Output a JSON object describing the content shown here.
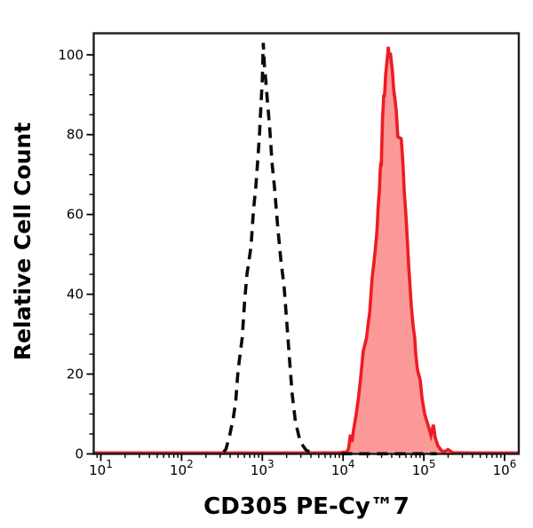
{
  "figure": {
    "background": "#ffffff",
    "frame_color": "#1c1c1c"
  },
  "chart_data": {
    "type": "area",
    "variant": "flow-cytometry-histogram-overlay",
    "title": "",
    "xlabel": "CD305 PE-Cy™7",
    "ylabel": "Relative Cell Count",
    "x_scale": "log10",
    "x_tick_exponents": [
      1,
      2,
      3,
      4,
      5,
      6
    ],
    "x_range_log10": [
      0.912,
      6.176
    ],
    "y_ticks_major": [
      0,
      20,
      40,
      60,
      80,
      100
    ],
    "y_tick_minor_step": 5,
    "y_range": [
      0,
      105.4
    ],
    "grid": false,
    "legend": null,
    "axis_color": "#1c1c1c",
    "tick_color": "#000000",
    "series": [
      {
        "name": "cd305-pe-cy7-stained",
        "line_style": "solid",
        "stroke": "#ed1c24",
        "stroke_width": 3.6,
        "dash": null,
        "fill": "#fb9998",
        "draw_above_axes": false,
        "paths": [
          [
            [
              0.912,
              0.25
            ],
            [
              3.6,
              0.25
            ],
            [
              3.95,
              0.3
            ],
            [
              4.05,
              0.5
            ],
            [
              4.07,
              1.5
            ],
            [
              4.09,
              4.8
            ],
            [
              4.11,
              3.0
            ],
            [
              4.13,
              6.0
            ],
            [
              4.16,
              9.5
            ],
            [
              4.19,
              14.0
            ],
            [
              4.22,
              19.5
            ],
            [
              4.25,
              25.8
            ],
            [
              4.29,
              29.0
            ],
            [
              4.31,
              32.5
            ],
            [
              4.33,
              35.5
            ],
            [
              4.345,
              40.0
            ],
            [
              4.36,
              44.0
            ],
            [
              4.38,
              47.5
            ],
            [
              4.4,
              51.5
            ],
            [
              4.42,
              56.0
            ],
            [
              4.435,
              62.0
            ],
            [
              4.45,
              66.0
            ],
            [
              4.46,
              71.0
            ],
            [
              4.468,
              73.0
            ],
            [
              4.473,
              72.0
            ],
            [
              4.482,
              79.0
            ],
            [
              4.49,
              84.5
            ],
            [
              4.497,
              87.0
            ],
            [
              4.503,
              90.0
            ],
            [
              4.51,
              89.5
            ],
            [
              4.517,
              91.0
            ],
            [
              4.527,
              95.0
            ],
            [
              4.537,
              97.0
            ],
            [
              4.55,
              99.5
            ],
            [
              4.56,
              102.0
            ],
            [
              4.57,
              99.5
            ],
            [
              4.585,
              100.5
            ],
            [
              4.6,
              98.0
            ],
            [
              4.613,
              95.5
            ],
            [
              4.626,
              91.5
            ],
            [
              4.645,
              88.5
            ],
            [
              4.658,
              86.0
            ],
            [
              4.668,
              83.0
            ],
            [
              4.678,
              79.5
            ],
            [
              4.72,
              79.0
            ],
            [
              4.735,
              75.0
            ],
            [
              4.748,
              70.0
            ],
            [
              4.758,
              65.5
            ],
            [
              4.775,
              61.0
            ],
            [
              4.788,
              56.5
            ],
            [
              4.8,
              52.0
            ],
            [
              4.813,
              47.0
            ],
            [
              4.83,
              42.0
            ],
            [
              4.845,
              37.0
            ],
            [
              4.868,
              32.0
            ],
            [
              4.888,
              29.0
            ],
            [
              4.9,
              25.0
            ],
            [
              4.922,
              21.0
            ],
            [
              4.955,
              18.5
            ],
            [
              4.978,
              14.0
            ],
            [
              5.01,
              10.0
            ],
            [
              5.055,
              7.0
            ],
            [
              5.088,
              4.7
            ],
            [
              5.118,
              7.3
            ],
            [
              5.142,
              4.0
            ],
            [
              5.175,
              2.0
            ],
            [
              5.22,
              0.8
            ],
            [
              5.25,
              0.5
            ],
            [
              5.3,
              1.1
            ],
            [
              5.36,
              0.3
            ],
            [
              5.6,
              0.25
            ],
            [
              6.176,
              0.25
            ]
          ]
        ]
      },
      {
        "name": "dashed-control",
        "line_style": "dashed",
        "stroke": "#0a0a0a",
        "stroke_width": 3.6,
        "dash": [
          12,
          8
        ],
        "fill": "none",
        "draw_above_axes": true,
        "paths": [
          [
            [
              2.52,
              0.5
            ],
            [
              2.55,
              1.2
            ],
            [
              2.6,
              5.0
            ],
            [
              2.64,
              9.0
            ],
            [
              2.67,
              13.0
            ],
            [
              2.7,
              21.0
            ],
            [
              2.75,
              29.0
            ],
            [
              2.78,
              38.0
            ],
            [
              2.81,
              45.0
            ],
            [
              2.86,
              52.0
            ],
            [
              2.89,
              61.0
            ],
            [
              2.92,
              67.0
            ],
            [
              2.945,
              74.0
            ],
            [
              2.965,
              80.0
            ],
            [
              2.985,
              88.0
            ],
            [
              3.0,
              94.0
            ],
            [
              3.012,
              103.0
            ],
            [
              3.025,
              97.5
            ],
            [
              3.045,
              93.0
            ],
            [
              3.06,
              89.0
            ],
            [
              3.09,
              82.0
            ],
            [
              3.12,
              73.0
            ],
            [
              3.15,
              67.0
            ],
            [
              3.19,
              57.0
            ],
            [
              3.23,
              48.5
            ],
            [
              3.27,
              42.0
            ],
            [
              3.305,
              32.5
            ],
            [
              3.335,
              24.0
            ],
            [
              3.37,
              15.0
            ],
            [
              3.41,
              8.0
            ],
            [
              3.47,
              3.0
            ],
            [
              3.54,
              1.0
            ],
            [
              3.6,
              0.3
            ]
          ],
          [
            [
              3.98,
              0.05
            ],
            [
              5.16,
              0.05
            ]
          ]
        ]
      }
    ]
  }
}
